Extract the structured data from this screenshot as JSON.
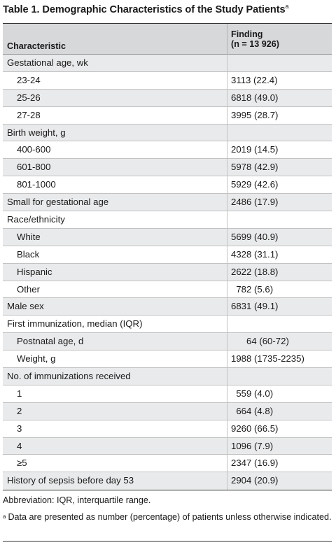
{
  "title": "Table 1. Demographic Characteristics of the Study Patients",
  "title_mark": "a",
  "header": {
    "characteristic": "Characteristic",
    "finding_line1": "Finding",
    "finding_line2": "(n = 13 926)"
  },
  "rows": [
    {
      "label": "Gestational age, wk",
      "value": "",
      "level": 0
    },
    {
      "label": "23-24",
      "value": "3113 (22.4)",
      "level": 1
    },
    {
      "label": "25-26",
      "value": "6818 (49.0)",
      "level": 1
    },
    {
      "label": "27-28",
      "value": "3995 (28.7)",
      "level": 1
    },
    {
      "label": "Birth weight, g",
      "value": "",
      "level": 0
    },
    {
      "label": "400-600",
      "value": "2019 (14.5)",
      "level": 1
    },
    {
      "label": "601-800",
      "value": "5978 (42.9)",
      "level": 1
    },
    {
      "label": "801-1000",
      "value": "5929 (42.6)",
      "level": 1
    },
    {
      "label": "Small for gestational age",
      "value": "2486 (17.9)",
      "level": 0
    },
    {
      "label": "Race/ethnicity",
      "value": "",
      "level": 0
    },
    {
      "label": "White",
      "value": "5699 (40.9)",
      "level": 1
    },
    {
      "label": "Black",
      "value": "4328 (31.1)",
      "level": 1
    },
    {
      "label": "Hispanic",
      "value": "2622 (18.8)",
      "level": 1
    },
    {
      "label": "Other",
      "value": " 782 (5.6)",
      "level": 1
    },
    {
      "label": "Male sex",
      "value": "6831 (49.1)",
      "level": 0
    },
    {
      "label": "First immunization, median (IQR)",
      "value": "",
      "level": 0
    },
    {
      "label": "Postnatal age, d",
      "value": "   64 (60-72)",
      "level": 1
    },
    {
      "label": "Weight, g",
      "value": "1988 (1735-2235)",
      "level": 1
    },
    {
      "label": "No. of immunizations received",
      "value": "",
      "level": 0
    },
    {
      "label": "1",
      "value": " 559 (4.0)",
      "level": 1
    },
    {
      "label": "2",
      "value": " 664 (4.8)",
      "level": 1
    },
    {
      "label": "3",
      "value": "9260 (66.5)",
      "level": 1
    },
    {
      "label": "4",
      "value": "1096 (7.9)",
      "level": 1
    },
    {
      "label": "≥5",
      "value": "2347 (16.9)",
      "level": 1
    },
    {
      "label": "History of sepsis before day 53",
      "value": "2904 (20.9)",
      "level": 0
    }
  ],
  "footnotes": {
    "abbreviation": "Abbreviation: IQR, interquartile range.",
    "note_mark": "a",
    "note": "Data are presented as number (percentage) of patients unless otherwise indicated."
  }
}
